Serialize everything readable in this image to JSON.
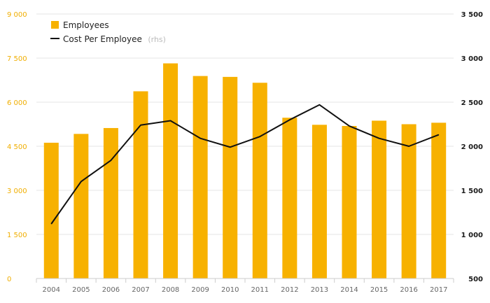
{
  "chart_data": {
    "type": "bar",
    "categories": [
      "2004",
      "2005",
      "2006",
      "2007",
      "2008",
      "2009",
      "2010",
      "2011",
      "2012",
      "2013",
      "2014",
      "2015",
      "2016",
      "2017"
    ],
    "series": [
      {
        "name": "Employees",
        "type": "bar",
        "axis": "left",
        "values": [
          4620,
          4920,
          5120,
          6370,
          7320,
          6890,
          6860,
          6660,
          5470,
          5230,
          5190,
          5370,
          5250,
          5300
        ]
      },
      {
        "name": "Cost Per Employee",
        "type": "line",
        "axis": "right",
        "values": [
          1120,
          1600,
          1840,
          2240,
          2290,
          2090,
          1990,
          2110,
          2300,
          2470,
          2230,
          2090,
          2000,
          2130
        ]
      }
    ],
    "left_axis": {
      "ylim": [
        0,
        9000
      ],
      "ticks": [
        0,
        1500,
        3000,
        4500,
        6000,
        7500,
        9000
      ],
      "tick_labels": [
        "0",
        "1 500",
        "3 000",
        "4 500",
        "6 000",
        "7 500",
        "9 000"
      ]
    },
    "right_axis": {
      "ylim": [
        500,
        3500
      ],
      "ticks": [
        500,
        1000,
        1500,
        2000,
        2500,
        3000,
        3500
      ],
      "tick_labels": [
        "500",
        "1 000",
        "1 500",
        "2 000",
        "2 500",
        "3 000",
        "3 500"
      ]
    },
    "legend": {
      "position": "top-left",
      "entries": [
        {
          "label": "Employees",
          "note": ""
        },
        {
          "label": "Cost Per Employee",
          "note": "(rhs)"
        }
      ]
    },
    "colors": {
      "bar": "#f7b100",
      "line": "#111111",
      "grid": "#e6e6e6",
      "left_tick": "#f0ae00",
      "right_tick": "#1a1a1a",
      "x_tick": "#666666"
    },
    "grid": true
  }
}
